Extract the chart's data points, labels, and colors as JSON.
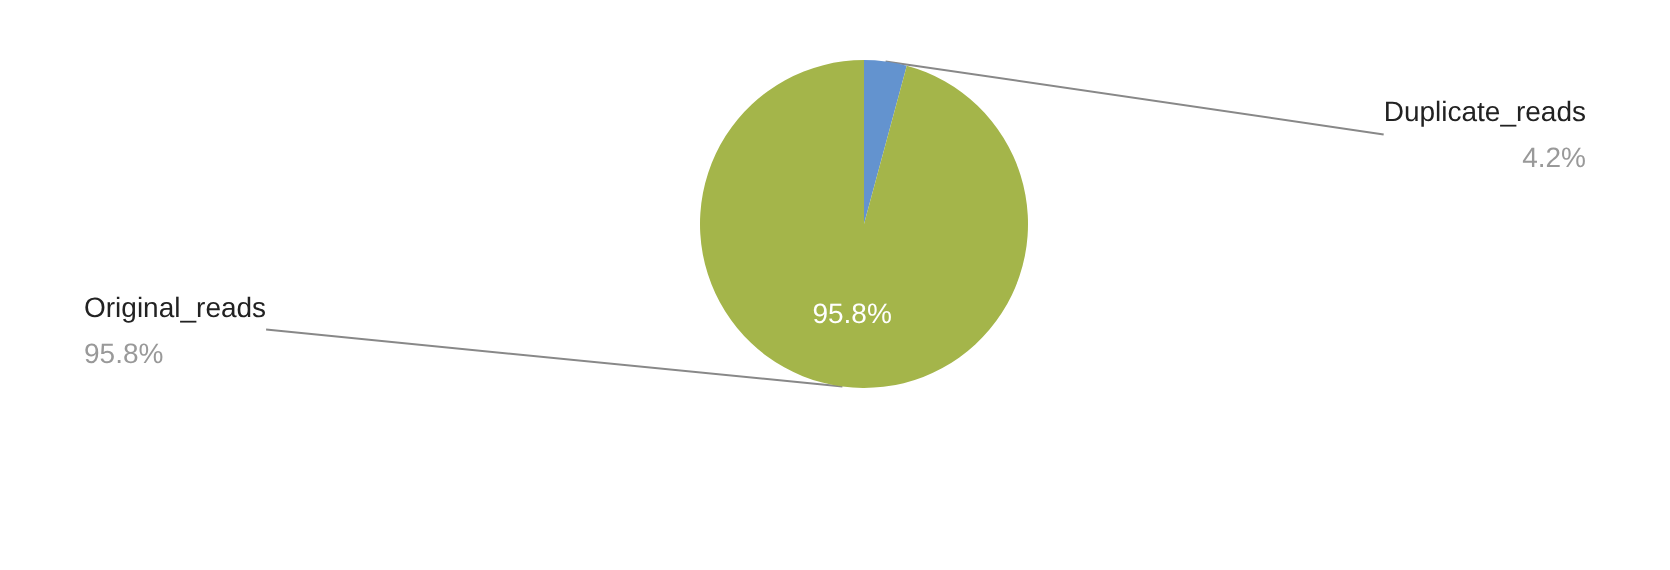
{
  "chart_data": {
    "type": "pie",
    "categories": [
      "Duplicate_reads",
      "Original_reads"
    ],
    "values": [
      4.2,
      95.8
    ],
    "colors": [
      "#6393cf",
      "#a4b54a"
    ],
    "data_labels": true,
    "value_labels": [
      "4.2%",
      "95.8%"
    ],
    "legend": false
  }
}
